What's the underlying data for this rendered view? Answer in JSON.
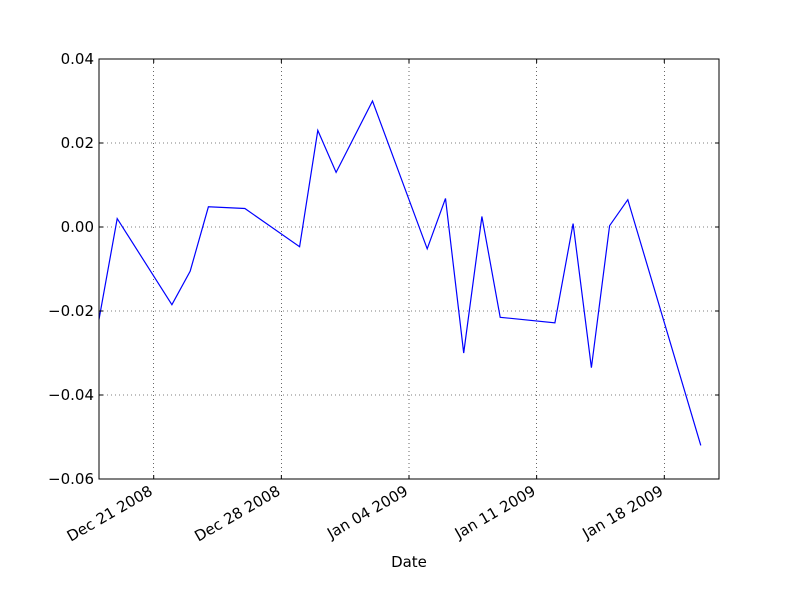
{
  "chart_data": {
    "type": "line",
    "title": "",
    "xlabel": "Date",
    "ylabel": "",
    "grid": true,
    "line_color": "#0000ff",
    "xlim": [
      "2008-12-18",
      "2009-01-21"
    ],
    "ylim": [
      -0.06,
      0.04
    ],
    "x_ticks": [
      {
        "date": "2008-12-21",
        "label": "Dec 21 2008"
      },
      {
        "date": "2008-12-28",
        "label": "Dec 28 2008"
      },
      {
        "date": "2009-01-04",
        "label": "Jan 04 2009"
      },
      {
        "date": "2009-01-11",
        "label": "Jan 11 2009"
      },
      {
        "date": "2009-01-18",
        "label": "Jan 18 2009"
      }
    ],
    "y_ticks": [
      {
        "value": 0.04,
        "label": "0.04"
      },
      {
        "value": 0.02,
        "label": "0.02"
      },
      {
        "value": 0.0,
        "label": "0.00"
      },
      {
        "value": -0.02,
        "label": "−0.02"
      },
      {
        "value": -0.04,
        "label": "−0.04"
      },
      {
        "value": -0.06,
        "label": "−0.06"
      }
    ],
    "series": [
      {
        "x": [
          "2008-12-18",
          "2008-12-19",
          "2008-12-22",
          "2008-12-23",
          "2008-12-24",
          "2008-12-26",
          "2008-12-29",
          "2008-12-30",
          "2008-12-31",
          "2009-01-02",
          "2009-01-05",
          "2009-01-06",
          "2009-01-07",
          "2009-01-08",
          "2009-01-09",
          "2009-01-12",
          "2009-01-13",
          "2009-01-14",
          "2009-01-15",
          "2009-01-16",
          "2009-01-20"
        ],
        "y": [
          -0.022,
          0.002,
          -0.0185,
          -0.0105,
          0.0048,
          0.0044,
          -0.0047,
          0.023,
          0.013,
          0.03,
          -0.0052,
          0.0068,
          -0.03,
          0.0025,
          -0.0215,
          -0.0228,
          0.0008,
          -0.0335,
          0.0003,
          0.0065,
          -0.052
        ]
      }
    ]
  }
}
